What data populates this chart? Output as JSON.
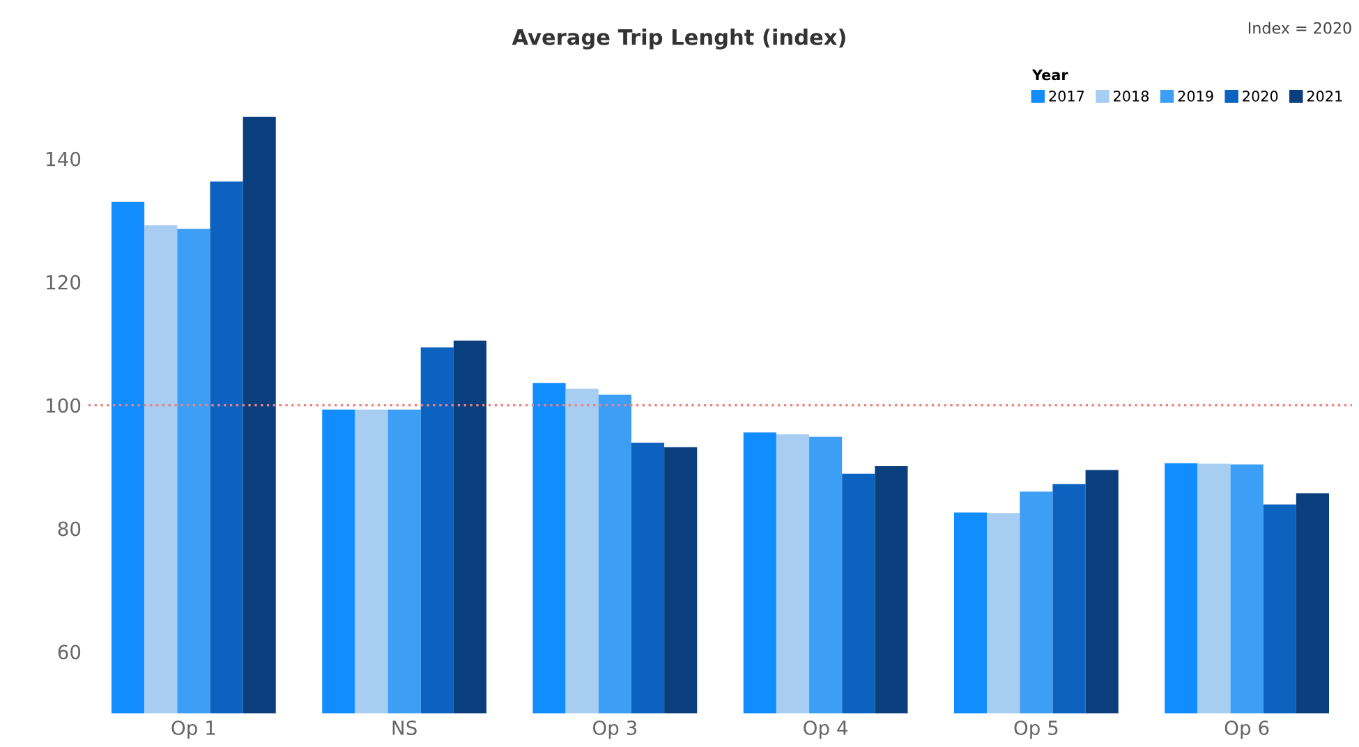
{
  "chart_data": {
    "type": "bar",
    "title": "Average Trip Lenght (index)",
    "annotations": [
      "Index = 2020"
    ],
    "categories": [
      "Op 1",
      "NS",
      "Op 3",
      "Op 4",
      "Op 5",
      "Op 6"
    ],
    "series": [
      {
        "name": "2017",
        "color": "#118dff",
        "values": [
          133,
          99.3,
          103.6,
          95.6,
          82.6,
          90.6
        ]
      },
      {
        "name": "2018",
        "color": "#a8cdf3",
        "values": [
          129.2,
          99.3,
          102.7,
          95.3,
          82.5,
          90.5
        ]
      },
      {
        "name": "2019",
        "color": "#3d9ef5",
        "values": [
          128.6,
          99.3,
          101.7,
          94.9,
          86.0,
          90.4
        ]
      },
      {
        "name": "2020",
        "color": "#0c62bf",
        "values": [
          136.3,
          109.4,
          93.9,
          88.9,
          87.2,
          83.9
        ]
      },
      {
        "name": "2021",
        "color": "#0a3e7c",
        "values": [
          146.8,
          110.5,
          93.2,
          90.1,
          89.5,
          85.7
        ]
      }
    ],
    "legend_title": "Year",
    "legend": "top right",
    "ylim": [
      50,
      150
    ],
    "yticks": [
      60,
      80,
      100,
      120,
      140
    ],
    "grid": false,
    "ref_lines": [
      {
        "axis": "y",
        "value": 100,
        "color": "#f08080",
        "line_style": "dotted"
      }
    ]
  }
}
